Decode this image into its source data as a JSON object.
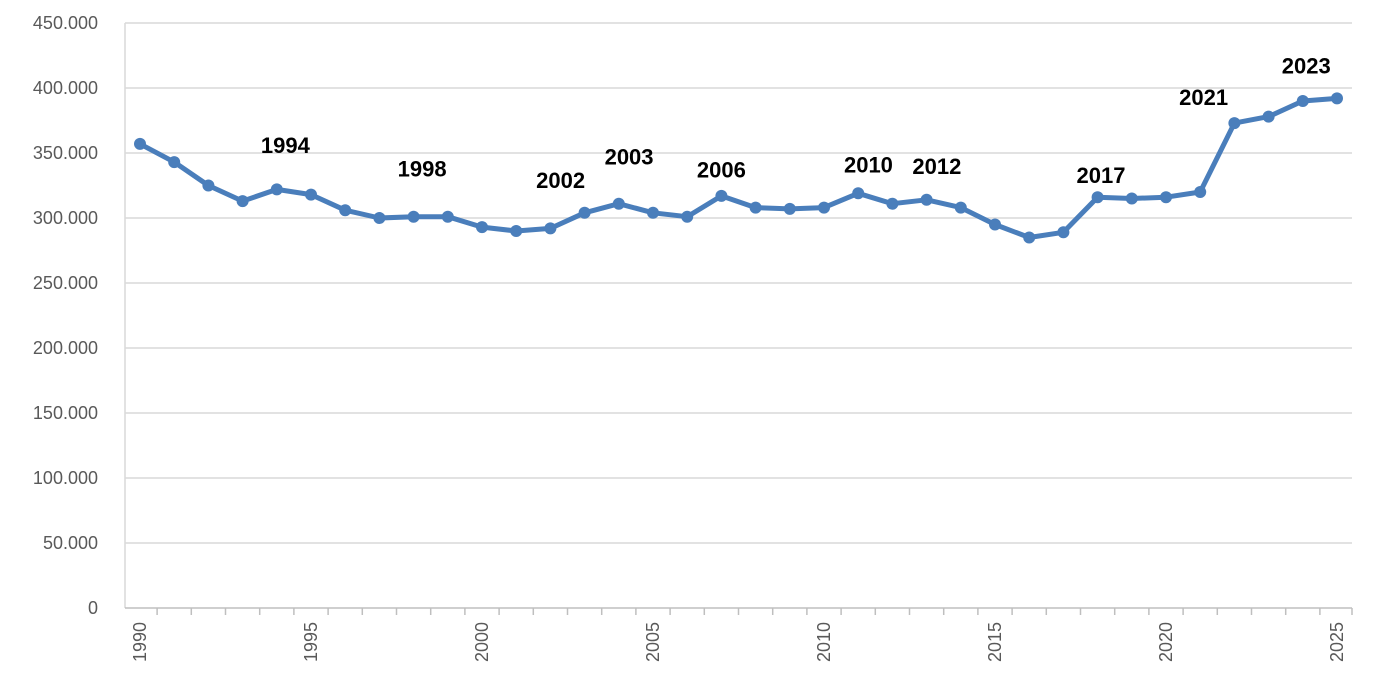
{
  "chart_data": {
    "type": "line",
    "title": "",
    "xlabel": "",
    "ylabel": "",
    "xlim": [
      1990,
      2025
    ],
    "ylim": [
      0,
      450000
    ],
    "y_tick_labels": [
      "0",
      "50.000",
      "100.000",
      "150.000",
      "200.000",
      "250.000",
      "300.000",
      "350.000",
      "400.000",
      "450.000"
    ],
    "x_tick_labels": [
      "1990",
      "1995",
      "2000",
      "2005",
      "2010",
      "2015",
      "2020",
      "2025"
    ],
    "grid": "horizontal",
    "legend": "none",
    "line_color": "#4A7EBB",
    "series": [
      {
        "x": [
          1990,
          1991,
          1992,
          1993,
          1994,
          1995,
          1996,
          1997,
          1998,
          1999,
          2000,
          2001,
          2002,
          2003,
          2004,
          2005,
          2006,
          2007,
          2008,
          2009,
          2010,
          2011,
          2012,
          2013,
          2014,
          2015,
          2016,
          2017,
          2018,
          2019,
          2020,
          2021,
          2022,
          2023,
          2024,
          2025
        ],
        "values": [
          357000,
          343000,
          325000,
          313000,
          322000,
          318000,
          306000,
          300000,
          301000,
          301000,
          293000,
          290000,
          292000,
          304000,
          311000,
          304000,
          301000,
          317000,
          308000,
          307000,
          308000,
          319000,
          311000,
          314000,
          308000,
          295000,
          285000,
          289000,
          316000,
          315000,
          316000,
          320000,
          373000,
          378000,
          390000,
          392000
        ]
      }
    ],
    "annotations": [
      {
        "text": "1994",
        "x": 1994.25,
        "y": 350000
      },
      {
        "text": "1998",
        "x": 1998.25,
        "y": 332000
      },
      {
        "text": "2002",
        "x": 2002.3,
        "y": 323000
      },
      {
        "text": "2003",
        "x": 2004.3,
        "y": 341000
      },
      {
        "text": "2006",
        "x": 2007.0,
        "y": 331000
      },
      {
        "text": "2010",
        "x": 2011.3,
        "y": 335000
      },
      {
        "text": "2012",
        "x": 2013.3,
        "y": 334000
      },
      {
        "text": "2017",
        "x": 2018.1,
        "y": 327000
      },
      {
        "text": "2021",
        "x": 2021.1,
        "y": 387000
      },
      {
        "text": "2023",
        "x": 2024.1,
        "y": 411000
      }
    ]
  }
}
